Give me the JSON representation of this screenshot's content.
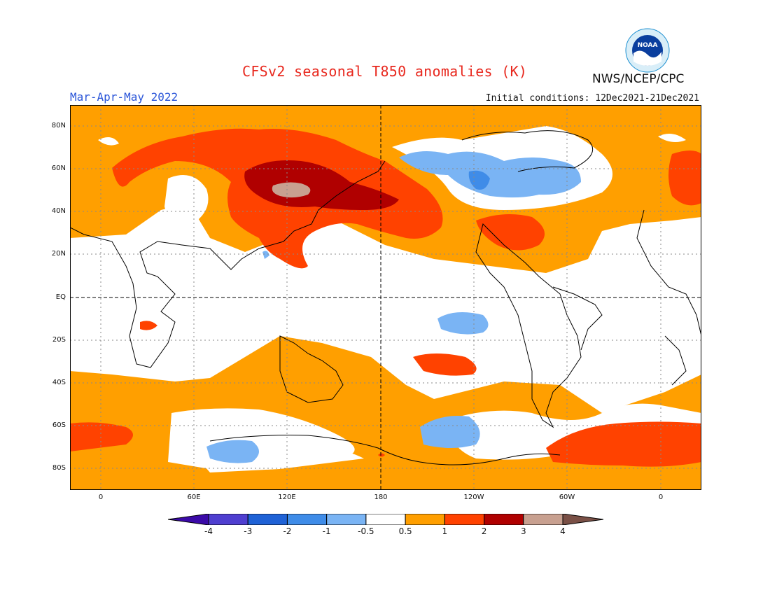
{
  "title": "CFSv2 seasonal T850 anomalies (K)",
  "season": "Mar-Apr-May 2022",
  "initial_conditions": "Initial conditions: 12Dec2021-21Dec2021",
  "agency": "NWS/NCEP/CPC",
  "logo": {
    "text": "NOAA",
    "colors": {
      "outer": "#d9eef8",
      "inner": "#0a3e9e",
      "wave": "#ffffff"
    }
  },
  "map": {
    "latitude_labels": [
      "80N",
      "60N",
      "40N",
      "20N",
      "EQ",
      "20S",
      "40S",
      "60S",
      "80S"
    ],
    "longitude_labels": [
      "0",
      "60E",
      "120E",
      "180",
      "120W",
      "60W",
      "0"
    ]
  },
  "colorbar": {
    "units": "K",
    "ticks": [
      "-4",
      "-3",
      "-2",
      "-1",
      "-0.5",
      "0.5",
      "1",
      "2",
      "3",
      "4"
    ],
    "colors": [
      "#3b0aa8",
      "#4f3fd0",
      "#1f62d6",
      "#3f8ce8",
      "#7ab4f4",
      "#ffffff",
      "#ff9f00",
      "#ff4200",
      "#b00000",
      "#c8a090",
      "#7a5046"
    ]
  }
}
